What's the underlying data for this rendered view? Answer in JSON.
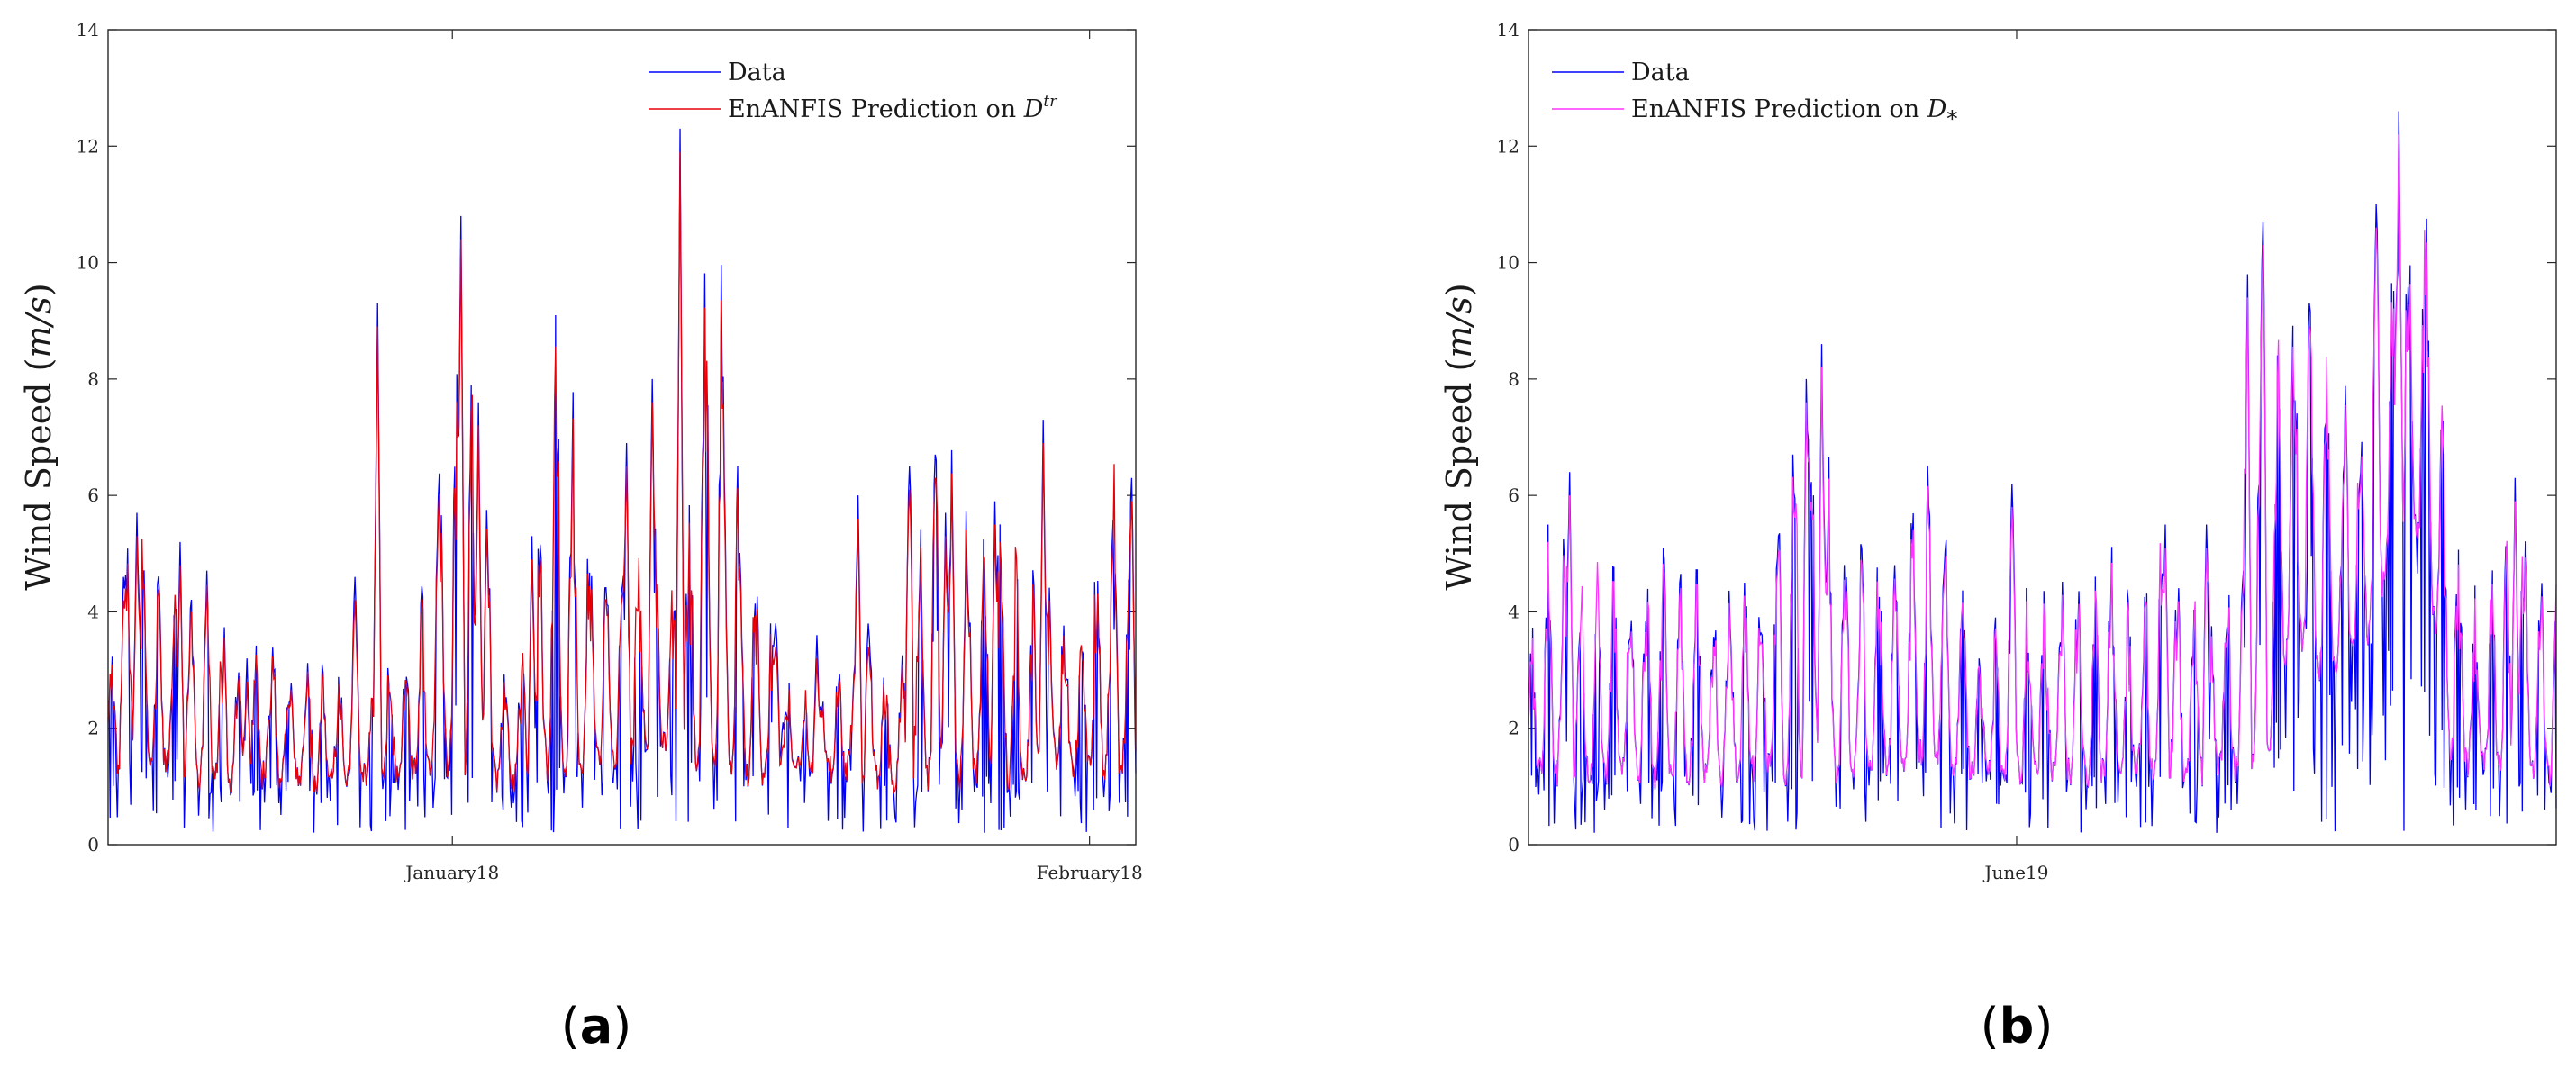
{
  "colors": {
    "data": "#0000ff",
    "pred_a": "#e8000b",
    "pred_b": "#ff33ff",
    "axis": "#262626"
  },
  "chart_data": [
    {
      "panel": "a",
      "caption_letter": "a",
      "type": "line",
      "ylabel_prefix": "Wind Speed (",
      "ylabel_math": "m/s",
      "ylabel_suffix": ")",
      "ylim": [
        0,
        14
      ],
      "yticks": [
        0,
        2,
        4,
        6,
        8,
        10,
        12,
        14
      ],
      "xticks": [
        {
          "label": "January18",
          "at": 0.335
        },
        {
          "label": "February18",
          "at": 0.955
        }
      ],
      "legend_position": "top-right",
      "legend": [
        {
          "series": "data",
          "label": "Data"
        },
        {
          "series": "pred",
          "label": "EnANFIS Prediction on ",
          "math": "D",
          "sup": "tr"
        }
      ],
      "n_points": 1000,
      "envelope_min": [
        1.3,
        1.5,
        1.4,
        1.2,
        1.2,
        1.1,
        1.2,
        1.1,
        1.0,
        1.2,
        1.2,
        1.2,
        1.3,
        1.3,
        1.2,
        1.1,
        1.2,
        1.4,
        1.3,
        1.5,
        1.6,
        1.7,
        1.5,
        1.3,
        1.2,
        1.2,
        1.2,
        1.3,
        1.3,
        1.2,
        1.0,
        1.2,
        1.1,
        1.3,
        1.2,
        1.2,
        1.3,
        1.4,
        1.3,
        1.4
      ],
      "envelope_max": [
        3.4,
        5.7,
        4.5,
        5.0,
        4.8,
        3.0,
        3.5,
        3.2,
        3.3,
        3.0,
        3.0,
        3.2,
        4.6,
        9.3,
        8.5,
        3.8,
        3.0,
        10.8,
        6.0,
        4.5,
        5.5,
        4.9,
        5.5,
        12.3,
        6.9,
        4.0,
        2.8,
        2.5,
        3.0,
        3.5,
        3.2,
        6.3,
        7.1,
        5.8,
        6.2,
        4.5,
        5.0,
        3.8,
        7.3,
        4.5
      ],
      "spikes": [
        {
          "at": 0.015,
          "value": 4.6
        },
        {
          "at": 0.028,
          "value": 5.7
        },
        {
          "at": 0.07,
          "value": 5.2
        },
        {
          "at": 0.135,
          "value": 3.2
        },
        {
          "at": 0.24,
          "value": 4.6
        },
        {
          "at": 0.262,
          "value": 9.3
        },
        {
          "at": 0.34,
          "value": 3.9
        },
        {
          "at": 0.36,
          "value": 7.6
        },
        {
          "at": 0.343,
          "value": 10.8
        },
        {
          "at": 0.412,
          "value": 5.3
        },
        {
          "at": 0.45,
          "value": 5.0
        },
        {
          "at": 0.505,
          "value": 6.9
        },
        {
          "at": 0.53,
          "value": 8.0
        },
        {
          "at": 0.557,
          "value": 12.3
        },
        {
          "at": 0.58,
          "value": 7.2
        },
        {
          "at": 0.647,
          "value": 2.4
        },
        {
          "at": 0.74,
          "value": 3.8
        },
        {
          "at": 0.65,
          "value": 3.2
        },
        {
          "at": 0.65,
          "value": 3.8
        },
        {
          "at": 0.657,
          "value": 2.1
        },
        {
          "at": 0.69,
          "value": 3.6
        },
        {
          "at": 0.78,
          "value": 5.7
        },
        {
          "at": 0.73,
          "value": 6.0
        },
        {
          "at": 0.78,
          "value": 6.5
        },
        {
          "at": 0.805,
          "value": 6.7
        },
        {
          "at": 0.815,
          "value": 5.7
        },
        {
          "at": 0.863,
          "value": 5.9
        },
        {
          "at": 0.91,
          "value": 7.3
        },
        {
          "at": 0.98,
          "value": 4.5
        },
        {
          "at": 0.996,
          "value": 6.3
        }
      ],
      "seed": 7
    },
    {
      "panel": "b",
      "caption_letter": "b",
      "type": "line",
      "ylabel_prefix": "Wind Speed (",
      "ylabel_math": "m/s",
      "ylabel_suffix": ")",
      "ylim": [
        0,
        14
      ],
      "yticks": [
        0,
        2,
        4,
        6,
        8,
        10,
        12,
        14
      ],
      "xticks": [
        {
          "label": "June19",
          "at": 0.475
        }
      ],
      "legend_position": "top-left",
      "legend": [
        {
          "series": "data",
          "label": "Data"
        },
        {
          "series": "pred",
          "label": "EnANFIS Prediction on ",
          "math": "D",
          "sub": "*"
        }
      ],
      "n_points": 1000,
      "envelope_min": [
        1.3,
        1.2,
        1.2,
        1.2,
        1.3,
        1.1,
        1.2,
        1.2,
        1.3,
        1.3,
        1.2,
        1.3,
        1.2,
        1.3,
        1.5,
        1.6,
        1.4,
        1.3,
        1.2,
        1.2,
        1.3,
        1.2,
        1.2,
        1.3,
        1.2,
        1.2,
        1.3,
        1.3,
        1.4,
        3.8,
        3.0,
        3.2,
        3.6,
        5.5,
        5.2,
        1.5,
        1.3,
        1.4,
        1.2,
        1.2
      ],
      "envelope_max": [
        3.5,
        6.4,
        4.7,
        4.9,
        5.3,
        5.0,
        5.4,
        4.5,
        4.6,
        5.0,
        7.9,
        8.6,
        5.5,
        5.2,
        6.3,
        6.5,
        5.3,
        3.5,
        4.3,
        4.6,
        4.6,
        4.5,
        5.5,
        4.0,
        5.3,
        4.8,
        4.5,
        5.0,
        9.8,
        9.4,
        8.9,
        7.8,
        9.4,
        11.0,
        12.6,
        6.2,
        4.1,
        5.5,
        6.3,
        4.8
      ],
      "spikes": [
        {
          "at": 0.04,
          "value": 6.4
        },
        {
          "at": 0.27,
          "value": 8.0
        },
        {
          "at": 0.285,
          "value": 8.6
        },
        {
          "at": 0.47,
          "value": 6.2
        },
        {
          "at": 0.62,
          "value": 5.5
        },
        {
          "at": 0.66,
          "value": 5.5
        },
        {
          "at": 0.7,
          "value": 9.8
        },
        {
          "at": 0.715,
          "value": 10.7
        },
        {
          "at": 0.76,
          "value": 9.3
        },
        {
          "at": 0.825,
          "value": 11.0
        },
        {
          "at": 0.847,
          "value": 12.6
        },
        {
          "at": 0.96,
          "value": 6.3
        }
      ],
      "seed": 19
    }
  ]
}
